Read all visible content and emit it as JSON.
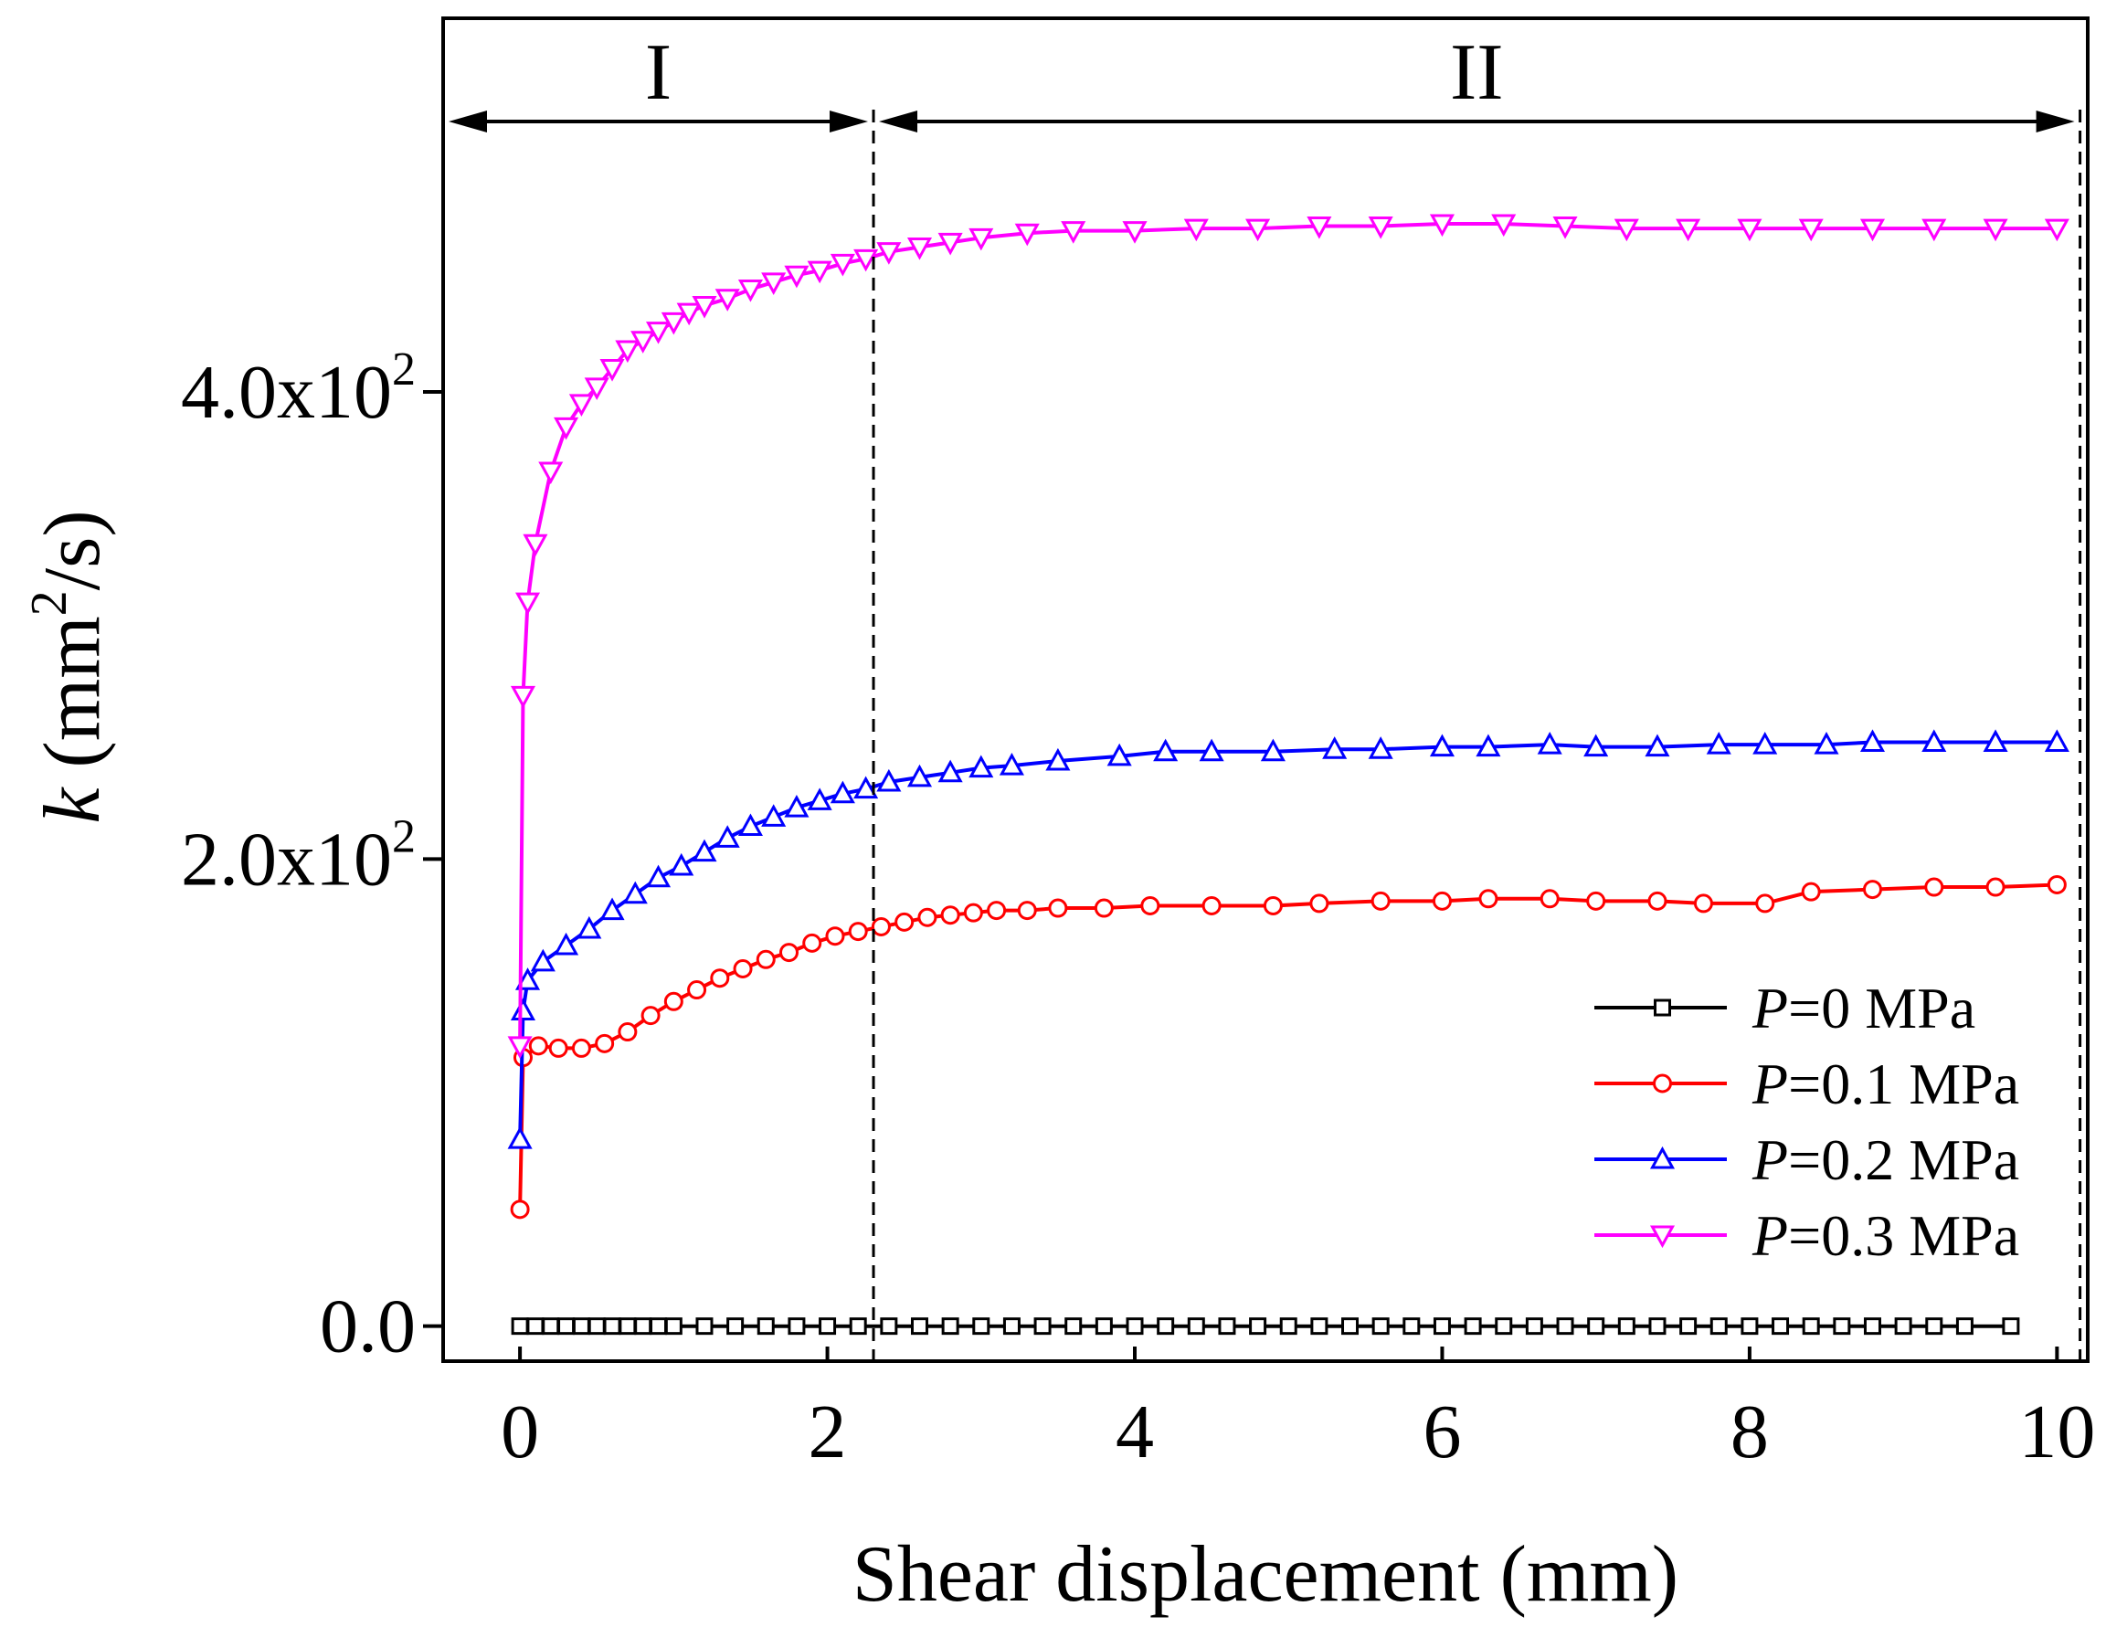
{
  "chart_data": {
    "type": "line",
    "x_axis": {
      "label": "Shear displacement (mm)",
      "range": [
        -0.5,
        10.2
      ],
      "ticks": [
        0,
        2,
        4,
        6,
        8,
        10
      ],
      "tick_labels": [
        "0",
        "2",
        "4",
        "6",
        "8",
        "10"
      ]
    },
    "y_axis": {
      "label_prefix": "k",
      "label_unit_open": " (mm",
      "label_unit_sup": "2",
      "label_unit_close": "/s)",
      "range": [
        -15,
        560
      ],
      "ticks": [
        0,
        200,
        400
      ],
      "tick_labels": [
        {
          "base": "0.0",
          "sup": ""
        },
        {
          "base": "2.0x10",
          "sup": "2"
        },
        {
          "base": "4.0x10",
          "sup": "2"
        }
      ]
    },
    "regions": [
      {
        "label": "I",
        "x_start": -0.5,
        "x_end": 2.3
      },
      {
        "label": "II",
        "x_start": 2.3,
        "x_end": 10.15
      }
    ],
    "divider_lines_x": [
      2.3,
      10.15
    ],
    "series": [
      {
        "name_var": "P",
        "name_rest": "=0 MPa",
        "color": "#000000",
        "marker": "square",
        "x": [
          0,
          0.1,
          0.2,
          0.3,
          0.4,
          0.5,
          0.6,
          0.7,
          0.8,
          0.9,
          1.0,
          1.2,
          1.4,
          1.6,
          1.8,
          2.0,
          2.2,
          2.4,
          2.6,
          2.8,
          3.0,
          3.2,
          3.4,
          3.6,
          3.8,
          4.0,
          4.2,
          4.4,
          4.6,
          4.8,
          5.0,
          5.2,
          5.4,
          5.6,
          5.8,
          6.0,
          6.2,
          6.4,
          6.6,
          6.8,
          7.0,
          7.2,
          7.4,
          7.6,
          7.8,
          8.0,
          8.2,
          8.4,
          8.6,
          8.8,
          9.0,
          9.2,
          9.4,
          9.7
        ],
        "y": [
          0,
          0,
          0,
          0,
          0,
          0,
          0,
          0,
          0,
          0,
          0,
          0,
          0,
          0,
          0,
          0,
          0,
          0,
          0,
          0,
          0,
          0,
          0,
          0,
          0,
          0,
          0,
          0,
          0,
          0,
          0,
          0,
          0,
          0,
          0,
          0,
          0,
          0,
          0,
          0,
          0,
          0,
          0,
          0,
          0,
          0,
          0,
          0,
          0,
          0,
          0,
          0,
          0,
          0
        ]
      },
      {
        "name_var": "P",
        "name_rest": "=0.1 MPa",
        "color": "#ff0000",
        "marker": "circle",
        "x": [
          0,
          0.02,
          0.12,
          0.25,
          0.4,
          0.55,
          0.7,
          0.85,
          1.0,
          1.15,
          1.3,
          1.45,
          1.6,
          1.75,
          1.9,
          2.05,
          2.2,
          2.35,
          2.5,
          2.65,
          2.8,
          2.95,
          3.1,
          3.3,
          3.5,
          3.8,
          4.1,
          4.5,
          4.9,
          5.2,
          5.6,
          6.0,
          6.3,
          6.7,
          7.0,
          7.4,
          7.7,
          8.1,
          8.4,
          8.8,
          9.2,
          9.6,
          10.0
        ],
        "y": [
          50,
          115,
          120,
          119,
          119,
          121,
          126,
          133,
          139,
          144,
          149,
          153,
          157,
          160,
          164,
          167,
          169,
          171,
          173,
          175,
          176,
          177,
          178,
          178,
          179,
          179,
          180,
          180,
          180,
          181,
          182,
          182,
          183,
          183,
          182,
          182,
          181,
          181,
          186,
          187,
          188,
          188,
          189
        ]
      },
      {
        "name_var": "P",
        "name_rest": "=0.2 MPa",
        "color": "#0000ff",
        "marker": "triangle-up",
        "x": [
          0,
          0.02,
          0.05,
          0.15,
          0.3,
          0.45,
          0.6,
          0.75,
          0.9,
          1.05,
          1.2,
          1.35,
          1.5,
          1.65,
          1.8,
          1.95,
          2.1,
          2.25,
          2.4,
          2.6,
          2.8,
          3.0,
          3.2,
          3.5,
          3.9,
          4.2,
          4.5,
          4.9,
          5.3,
          5.6,
          6.0,
          6.3,
          6.7,
          7.0,
          7.4,
          7.8,
          8.1,
          8.5,
          8.8,
          9.2,
          9.6,
          10.0
        ],
        "y": [
          80,
          135,
          148,
          156,
          163,
          170,
          178,
          185,
          192,
          197,
          203,
          209,
          214,
          218,
          222,
          225,
          228,
          230,
          233,
          235,
          237,
          239,
          240,
          242,
          244,
          246,
          246,
          246,
          247,
          247,
          248,
          248,
          249,
          248,
          248,
          249,
          249,
          249,
          250,
          250,
          250,
          250
        ]
      },
      {
        "name_var": "P",
        "name_rest": "=0.3 MPa",
        "color": "#ff00ff",
        "marker": "triangle-down",
        "x": [
          0,
          0.02,
          0.05,
          0.1,
          0.2,
          0.3,
          0.4,
          0.5,
          0.6,
          0.7,
          0.8,
          0.9,
          1.0,
          1.1,
          1.2,
          1.35,
          1.5,
          1.65,
          1.8,
          1.95,
          2.1,
          2.25,
          2.4,
          2.6,
          2.8,
          3.0,
          3.3,
          3.6,
          4.0,
          4.4,
          4.8,
          5.2,
          5.6,
          6.0,
          6.4,
          6.8,
          7.2,
          7.6,
          8.0,
          8.4,
          8.8,
          9.2,
          9.6,
          10.0
        ],
        "y": [
          120,
          270,
          310,
          335,
          366,
          385,
          395,
          402,
          410,
          418,
          422,
          426,
          430,
          434,
          437,
          440,
          444,
          447,
          450,
          452,
          455,
          457,
          460,
          462,
          464,
          466,
          468,
          469,
          469,
          470,
          470,
          471,
          471,
          472,
          472,
          471,
          470,
          470,
          470,
          470,
          470,
          470,
          470,
          470
        ]
      }
    ],
    "legend_position": "bottom-right"
  }
}
